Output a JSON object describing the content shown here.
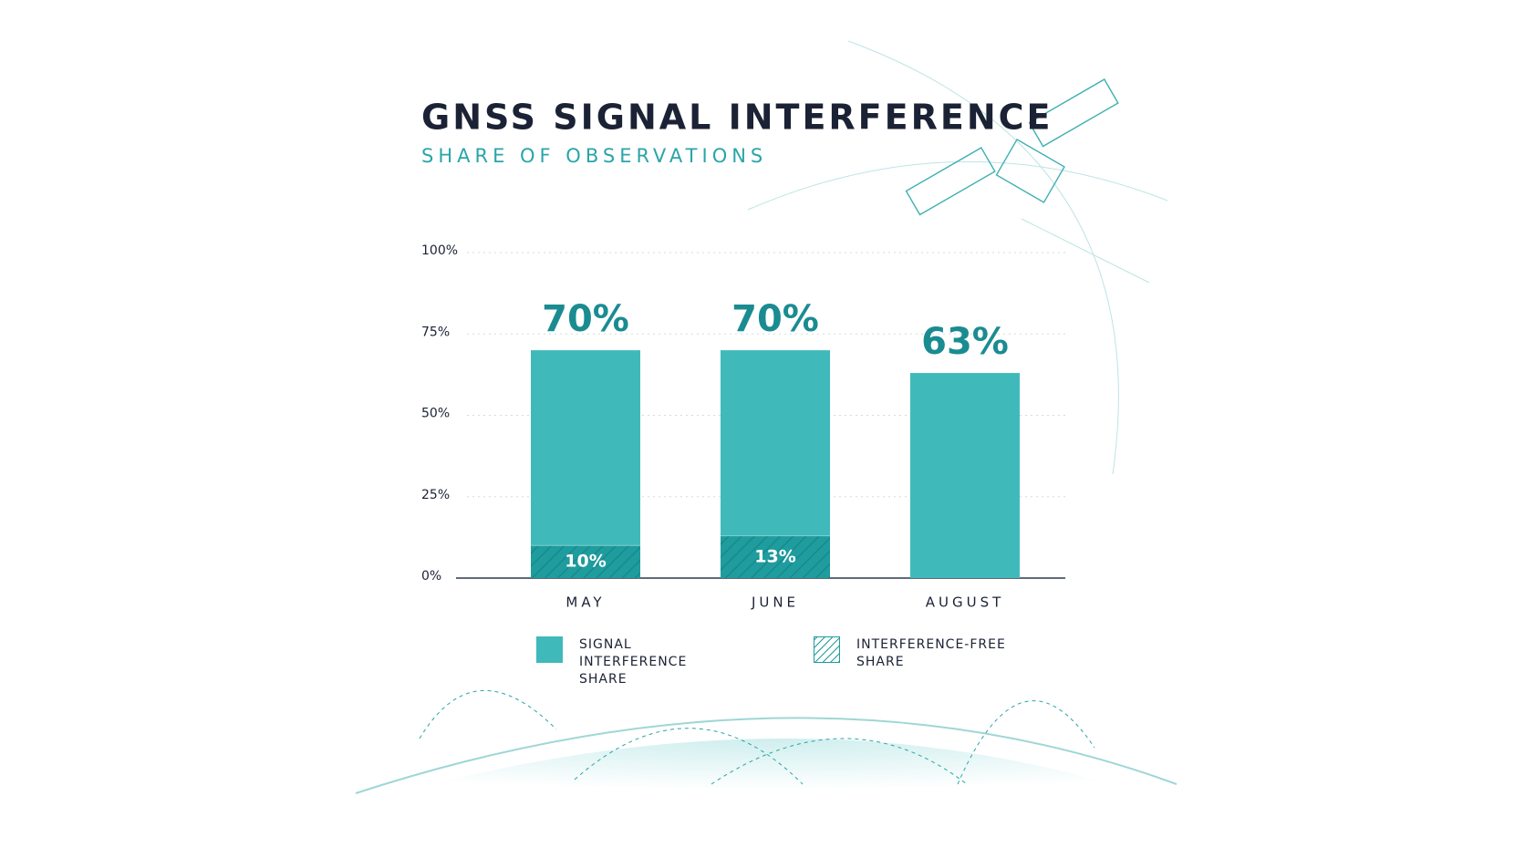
{
  "chart_data": {
    "type": "bar",
    "title": "GNSS SIGNAL INTERFERENCE",
    "subtitle": "SHARE OF OBSERVATIONS",
    "categories": [
      "MAY",
      "JUNE",
      "AUGUST"
    ],
    "series": [
      {
        "name": "SIGNAL INTERFERENCE SHARE",
        "color": "#40b9bb",
        "fill_style": "solid",
        "values": [
          70,
          70,
          63
        ],
        "value_labels": [
          "70%",
          "70%",
          "63%"
        ]
      },
      {
        "name": "INTERFERENCE-FREE SHARE",
        "color": "#1f9c9e",
        "fill_style": "hatch",
        "values": [
          10,
          13,
          null
        ],
        "value_labels": [
          "10%",
          "13%",
          null
        ]
      }
    ],
    "ylim": [
      0,
      100
    ],
    "yticks": [
      {
        "value": 0,
        "label": "0%"
      },
      {
        "value": 25,
        "label": "25%"
      },
      {
        "value": 50,
        "label": "50%"
      },
      {
        "value": 75,
        "label": "75%"
      },
      {
        "value": 100,
        "label": "100%"
      }
    ],
    "grid": true,
    "legend": "bottom"
  }
}
